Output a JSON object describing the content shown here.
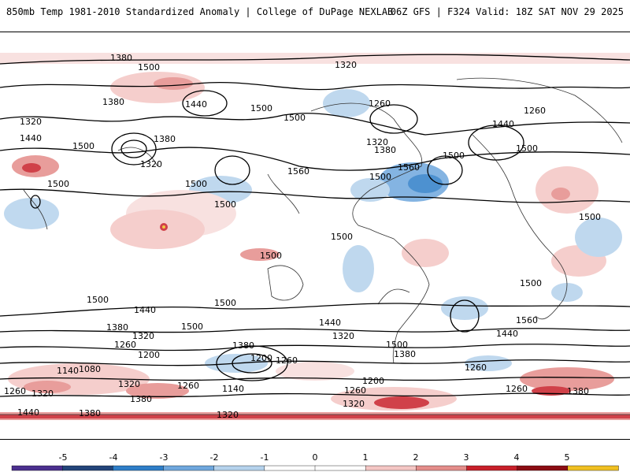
{
  "header": {
    "title_left": "850mb Temp 1981-2010 Standardized Anomaly | College of DuPage NEXLAB",
    "title_right": "06Z GFS | F324 Valid: 18Z SAT NOV 29 2025"
  },
  "map": {
    "contour_labels": [
      "1380",
      "1320",
      "1500",
      "1260",
      "1440",
      "1500",
      "1380",
      "1500",
      "1440",
      "1320",
      "1440",
      "1260",
      "1320",
      "1500",
      "1380",
      "1500",
      "1380",
      "1320",
      "1500",
      "1560",
      "1500",
      "1560",
      "1500",
      "1500",
      "1500",
      "1500",
      "1500",
      "1440",
      "1500",
      "1500",
      "1500",
      "1440",
      "1500",
      "1560",
      "1380",
      "1440",
      "1320",
      "1260",
      "1500",
      "1500",
      "1380",
      "1320",
      "1200",
      "1260",
      "1380",
      "1260",
      "1140",
      "1080",
      "1200",
      "1260",
      "1320",
      "1260",
      "1380",
      "1140",
      "1260",
      "1440",
      "1380",
      "1320",
      "1320",
      "1200",
      "1260",
      "1380",
      "1320"
    ]
  },
  "colorbar": {
    "tick_labels": [
      "-5",
      "-4",
      "-3",
      "-2",
      "-1",
      "0",
      "1",
      "2",
      "3",
      "4",
      "5"
    ],
    "colors": [
      "#4b2f8f",
      "#23447a",
      "#2e7ec8",
      "#6fa7dd",
      "#b5d2ec",
      "#ffffff",
      "#ffffff",
      "#f4c6c4",
      "#e48d8a",
      "#c8202a",
      "#8b0d13",
      "#f0c022"
    ]
  }
}
